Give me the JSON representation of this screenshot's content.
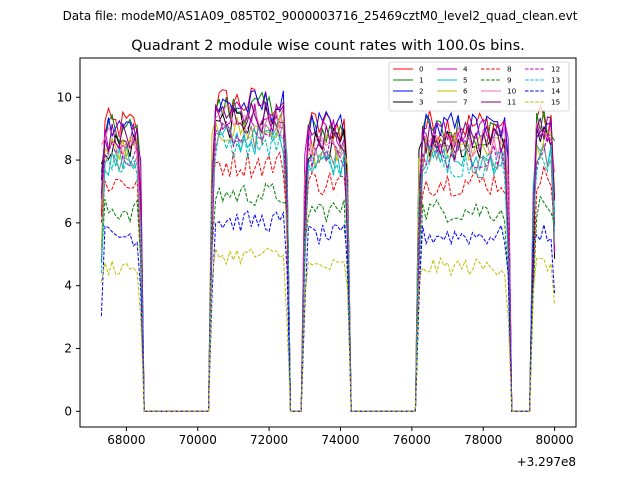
{
  "suptitle": "Data file: modeM0/AS1A09_085T02_9000003716_25469cztM0_level2_quad_clean.evt",
  "chart_data": {
    "type": "line",
    "title": "Quadrant 2 module wise count rates with 100.0s bins.",
    "xlabel": "",
    "ylabel": "",
    "x_offset_label": "+3.297e8",
    "xlim": [
      66700,
      80600
    ],
    "ylim": [
      -0.5,
      11.25
    ],
    "xticks": [
      68000,
      70000,
      72000,
      74000,
      76000,
      78000,
      80000
    ],
    "xtick_labels": [
      "68000",
      "70000",
      "72000",
      "74000",
      "76000",
      "78000",
      "80000"
    ],
    "yticks": [
      0,
      2,
      4,
      6,
      8,
      10
    ],
    "ytick_labels": [
      "0",
      "2",
      "4",
      "6",
      "8",
      "10"
    ],
    "grid": false,
    "legend_position": "top-right",
    "legend_columns": 4,
    "bin_width": 100,
    "segments": [
      {
        "start": 67300,
        "end": 68400
      },
      {
        "start": 70400,
        "end": 72500
      },
      {
        "start": 73000,
        "end": 74200
      },
      {
        "start": 76200,
        "end": 78700
      },
      {
        "start": 79400,
        "end": 80000
      }
    ],
    "series": [
      {
        "name": "0",
        "color": "#ff0000",
        "dash": "solid",
        "level": 9.1
      },
      {
        "name": "1",
        "color": "#008000",
        "dash": "solid",
        "level": 8.9
      },
      {
        "name": "2",
        "color": "#0000ff",
        "dash": "solid",
        "level": 9.0
      },
      {
        "name": "3",
        "color": "#000000",
        "dash": "solid",
        "level": 8.5
      },
      {
        "name": "4",
        "color": "#bf00bf",
        "dash": "solid",
        "level": 8.8
      },
      {
        "name": "5",
        "color": "#00bfbf",
        "dash": "solid",
        "level": 8.0
      },
      {
        "name": "6",
        "color": "#bfbf00",
        "dash": "solid",
        "level": 8.3
      },
      {
        "name": "7",
        "color": "#888888",
        "dash": "solid",
        "level": 8.1
      },
      {
        "name": "8",
        "color": "#ff0000",
        "dash": "dashed",
        "level": 7.3
      },
      {
        "name": "9",
        "color": "#008000",
        "dash": "dashed",
        "level": 6.4
      },
      {
        "name": "10",
        "color": "#ff69b4",
        "dash": "solid",
        "level": 8.6
      },
      {
        "name": "11",
        "color": "#800080",
        "dash": "solid",
        "level": 8.7
      },
      {
        "name": "12",
        "color": "#bf00bf",
        "dash": "dashed",
        "level": 8.2
      },
      {
        "name": "13",
        "color": "#00bfbf",
        "dash": "dashed",
        "level": 7.9
      },
      {
        "name": "14",
        "color": "#0000ff",
        "dash": "dashed",
        "level": 5.6
      },
      {
        "name": "15",
        "color": "#bfbf00",
        "dash": "dashed",
        "level": 4.6
      }
    ]
  }
}
